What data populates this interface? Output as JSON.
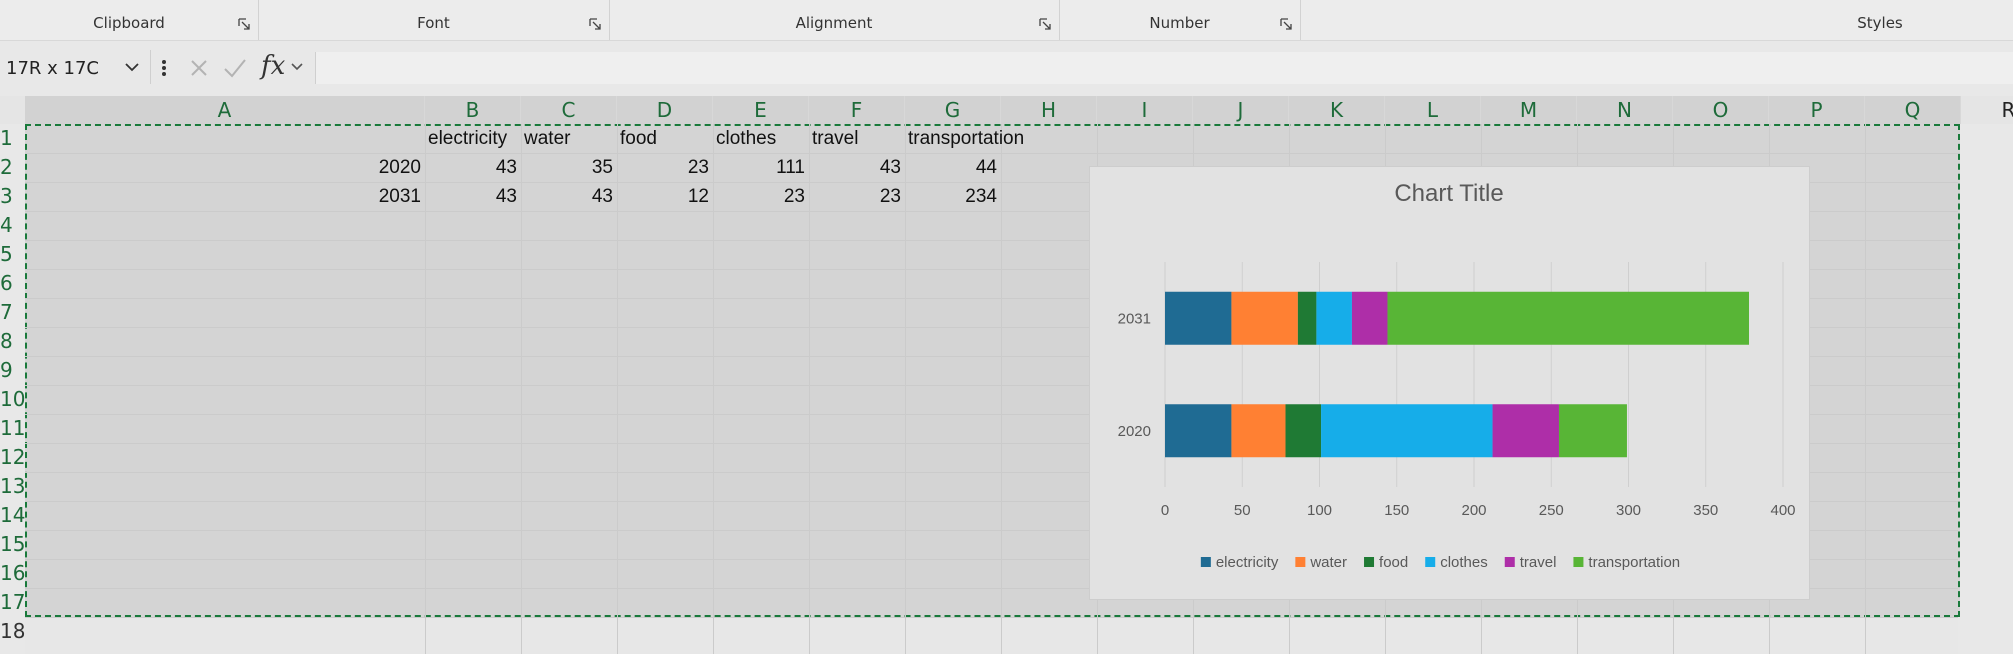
{
  "ribbon": {
    "groups": [
      {
        "label": "Clipboard"
      },
      {
        "label": "Font"
      },
      {
        "label": "Alignment"
      },
      {
        "label": "Number"
      },
      {
        "label": "Styles"
      }
    ]
  },
  "formula_bar": {
    "name_box": "17R x 17C",
    "fx": "fx",
    "formula": ""
  },
  "columns": [
    "A",
    "B",
    "C",
    "D",
    "E",
    "F",
    "G",
    "H",
    "I",
    "J",
    "K",
    "L",
    "M",
    "N",
    "O",
    "P",
    "Q",
    "R"
  ],
  "rows": [
    "1",
    "2",
    "3",
    "4",
    "5",
    "6",
    "7",
    "8",
    "9",
    "10",
    "11",
    "12",
    "13",
    "14",
    "15",
    "16",
    "17",
    "18"
  ],
  "sheet": {
    "header": [
      "",
      "electricity",
      "water",
      "food",
      "clothes",
      "travel",
      "transportation"
    ],
    "data": [
      [
        "2020",
        "43",
        "35",
        "23",
        "111",
        "43",
        "44"
      ],
      [
        "2031",
        "43",
        "43",
        "12",
        "23",
        "23",
        "234"
      ]
    ]
  },
  "chart_data": {
    "type": "bar",
    "orientation": "horizontal",
    "stacked": true,
    "title": "Chart Title",
    "categories": [
      "2020",
      "2031"
    ],
    "series": [
      {
        "name": "electricity",
        "values": [
          43,
          43
        ],
        "color": "#1f6b93"
      },
      {
        "name": "water",
        "values": [
          35,
          43
        ],
        "color": "#ff8033"
      },
      {
        "name": "food",
        "values": [
          23,
          12
        ],
        "color": "#1f7a34"
      },
      {
        "name": "clothes",
        "values": [
          111,
          23
        ],
        "color": "#16ade9"
      },
      {
        "name": "travel",
        "values": [
          43,
          23
        ],
        "color": "#ae2ea8"
      },
      {
        "name": "transportation",
        "values": [
          44,
          234
        ],
        "color": "#58b536"
      }
    ],
    "xlim": [
      0,
      400
    ],
    "xticks": [
      0,
      50,
      100,
      150,
      200,
      250,
      300,
      350,
      400
    ],
    "grid": true,
    "legend": "bottom"
  },
  "colors": {
    "selection_border": "#1a7a3c",
    "header_text": "#1e6b3a"
  }
}
